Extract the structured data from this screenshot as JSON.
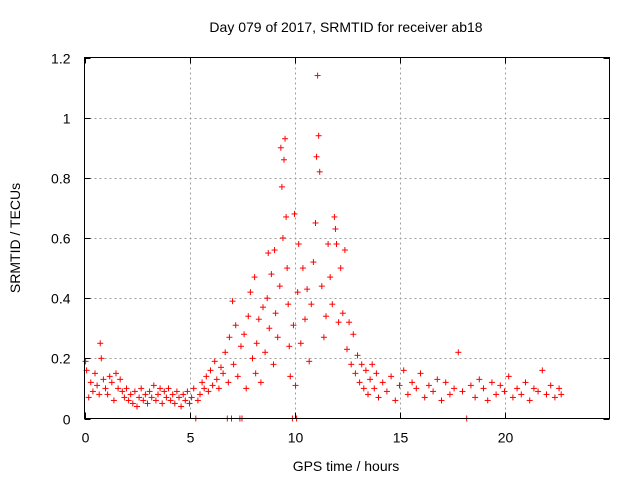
{
  "chart_data": {
    "type": "scatter",
    "title": "Day 079 of 2017, SRMTID for receiver ab18",
    "xlabel": "GPS time / hours",
    "ylabel": "SRMTID / TECUs",
    "xlim": [
      0,
      25
    ],
    "ylim": [
      0,
      1.2
    ],
    "xticks": [
      0,
      5,
      10,
      15,
      20
    ],
    "yticks": [
      0,
      0.2,
      0.4,
      0.6,
      0.8,
      1,
      1.2
    ],
    "ytick_labels": [
      "0",
      "0.2",
      "0.4",
      "0.6",
      "0.8",
      "1",
      "1.2"
    ],
    "grid": true,
    "marker": "+",
    "color": "#ff0000",
    "series": [
      {
        "name": "SRMTID",
        "points": [
          [
            0.05,
            0.19
          ],
          [
            0.1,
            0.16
          ],
          [
            0.2,
            0.07
          ],
          [
            0.3,
            0.12
          ],
          [
            0.4,
            0.09
          ],
          [
            0.5,
            0.15
          ],
          [
            0.6,
            0.11
          ],
          [
            0.7,
            0.08
          ],
          [
            0.75,
            0.25
          ],
          [
            0.8,
            0.2
          ],
          [
            0.9,
            0.13
          ],
          [
            1.0,
            0.1
          ],
          [
            1.1,
            0.08
          ],
          [
            1.2,
            0.14
          ],
          [
            1.3,
            0.12
          ],
          [
            1.4,
            0.06
          ],
          [
            1.5,
            0.15
          ],
          [
            1.6,
            0.1
          ],
          [
            1.7,
            0.13
          ],
          [
            1.8,
            0.09
          ],
          [
            1.9,
            0.07
          ],
          [
            2.0,
            0.1
          ],
          [
            2.1,
            0.06
          ],
          [
            2.2,
            0.08
          ],
          [
            2.3,
            0.05
          ],
          [
            2.4,
            0.09
          ],
          [
            2.5,
            0.04
          ],
          [
            2.6,
            0.07
          ],
          [
            2.7,
            0.1
          ],
          [
            2.8,
            0.06
          ],
          [
            2.9,
            0.08
          ],
          [
            3.0,
            0.05
          ],
          [
            3.1,
            0.09
          ],
          [
            3.2,
            0.07
          ],
          [
            3.3,
            0.11
          ],
          [
            3.4,
            0.06
          ],
          [
            3.5,
            0.08
          ],
          [
            3.6,
            0.1
          ],
          [
            3.7,
            0.05
          ],
          [
            3.8,
            0.09
          ],
          [
            3.9,
            0.07
          ],
          [
            4.0,
            0.1
          ],
          [
            4.1,
            0.06
          ],
          [
            4.2,
            0.08
          ],
          [
            4.3,
            0.05
          ],
          [
            4.4,
            0.09
          ],
          [
            4.5,
            0.07
          ],
          [
            4.6,
            0.04
          ],
          [
            4.7,
            0.08
          ],
          [
            4.8,
            0.06
          ],
          [
            4.9,
            0.09
          ],
          [
            5.0,
            0.05
          ],
          [
            5.1,
            0.07
          ],
          [
            5.2,
            0.1
          ],
          [
            5.3,
            0.0
          ],
          [
            5.4,
            0.06
          ],
          [
            5.5,
            0.08
          ],
          [
            5.6,
            0.12
          ],
          [
            5.7,
            0.1
          ],
          [
            5.8,
            0.14
          ],
          [
            5.9,
            0.09
          ],
          [
            6.0,
            0.16
          ],
          [
            6.1,
            0.11
          ],
          [
            6.2,
            0.19
          ],
          [
            6.3,
            0.13
          ],
          [
            6.4,
            0.1
          ],
          [
            6.5,
            0.17
          ],
          [
            6.6,
            0.15
          ],
          [
            6.7,
            0.22
          ],
          [
            6.8,
            0.0
          ],
          [
            6.85,
            0.12
          ],
          [
            6.9,
            0.27
          ],
          [
            7.0,
            0.0
          ],
          [
            7.05,
            0.39
          ],
          [
            7.1,
            0.18
          ],
          [
            7.2,
            0.31
          ],
          [
            7.3,
            0.14
          ],
          [
            7.4,
            0.0
          ],
          [
            7.45,
            0.24
          ],
          [
            7.5,
            0.0
          ],
          [
            7.6,
            0.28
          ],
          [
            7.7,
            0.1
          ],
          [
            7.8,
            0.34
          ],
          [
            7.9,
            0.42
          ],
          [
            8.0,
            0.2
          ],
          [
            8.1,
            0.47
          ],
          [
            8.15,
            0.15
          ],
          [
            8.2,
            0.25
          ],
          [
            8.3,
            0.33
          ],
          [
            8.4,
            0.12
          ],
          [
            8.5,
            0.37
          ],
          [
            8.6,
            0.22
          ],
          [
            8.7,
            0.4
          ],
          [
            8.75,
            0.55
          ],
          [
            8.8,
            0.3
          ],
          [
            8.9,
            0.48
          ],
          [
            9.0,
            0.18
          ],
          [
            9.05,
            0.56
          ],
          [
            9.1,
            0.35
          ],
          [
            9.2,
            0.27
          ],
          [
            9.3,
            0.44
          ],
          [
            9.35,
            0.9
          ],
          [
            9.4,
            0.77
          ],
          [
            9.45,
            0.6
          ],
          [
            9.5,
            0.86
          ],
          [
            9.55,
            0.93
          ],
          [
            9.6,
            0.67
          ],
          [
            9.65,
            0.5
          ],
          [
            9.7,
            0.38
          ],
          [
            9.75,
            0.24
          ],
          [
            9.8,
            0.14
          ],
          [
            9.9,
            0.0
          ],
          [
            9.95,
            0.31
          ],
          [
            10.0,
            0.68
          ],
          [
            10.05,
            0.11
          ],
          [
            10.1,
            0.0
          ],
          [
            10.15,
            0.42
          ],
          [
            10.2,
            0.58
          ],
          [
            10.3,
            0.25
          ],
          [
            10.4,
            0.5
          ],
          [
            10.5,
            0.33
          ],
          [
            10.6,
            0.43
          ],
          [
            10.7,
            0.19
          ],
          [
            10.8,
            0.38
          ],
          [
            10.9,
            0.52
          ],
          [
            11.0,
            0.65
          ],
          [
            11.05,
            0.87
          ],
          [
            11.1,
            1.14
          ],
          [
            11.15,
            0.94
          ],
          [
            11.2,
            0.82
          ],
          [
            11.3,
            0.44
          ],
          [
            11.4,
            0.27
          ],
          [
            11.5,
            0.34
          ],
          [
            11.6,
            0.58
          ],
          [
            11.7,
            0.47
          ],
          [
            11.8,
            0.38
          ],
          [
            11.9,
            0.67
          ],
          [
            11.95,
            0.63
          ],
          [
            12.0,
            0.58
          ],
          [
            12.1,
            0.32
          ],
          [
            12.2,
            0.5
          ],
          [
            12.3,
            0.35
          ],
          [
            12.4,
            0.56
          ],
          [
            12.5,
            0.23
          ],
          [
            12.6,
            0.32
          ],
          [
            12.7,
            0.18
          ],
          [
            12.8,
            0.28
          ],
          [
            12.9,
            0.15
          ],
          [
            13.0,
            0.21
          ],
          [
            13.1,
            0.12
          ],
          [
            13.2,
            0.18
          ],
          [
            13.3,
            0.1
          ],
          [
            13.4,
            0.16
          ],
          [
            13.5,
            0.08
          ],
          [
            13.6,
            0.13
          ],
          [
            13.7,
            0.18
          ],
          [
            13.8,
            0.1
          ],
          [
            13.9,
            0.15
          ],
          [
            14.0,
            0.07
          ],
          [
            14.2,
            0.12
          ],
          [
            14.4,
            0.09
          ],
          [
            14.6,
            0.14
          ],
          [
            14.8,
            0.06
          ],
          [
            15.0,
            0.11
          ],
          [
            15.2,
            0.16
          ],
          [
            15.4,
            0.08
          ],
          [
            15.6,
            0.12
          ],
          [
            15.8,
            0.1
          ],
          [
            16.0,
            0.15
          ],
          [
            16.2,
            0.07
          ],
          [
            16.4,
            0.11
          ],
          [
            16.6,
            0.09
          ],
          [
            16.8,
            0.13
          ],
          [
            17.0,
            0.06
          ],
          [
            17.2,
            0.12
          ],
          [
            17.4,
            0.08
          ],
          [
            17.6,
            0.1
          ],
          [
            17.8,
            0.22
          ],
          [
            18.0,
            0.09
          ],
          [
            18.2,
            0.0
          ],
          [
            18.4,
            0.11
          ],
          [
            18.6,
            0.07
          ],
          [
            18.8,
            0.13
          ],
          [
            19.0,
            0.1
          ],
          [
            19.2,
            0.06
          ],
          [
            19.4,
            0.12
          ],
          [
            19.6,
            0.08
          ],
          [
            19.8,
            0.11
          ],
          [
            20.0,
            0.09
          ],
          [
            20.2,
            0.14
          ],
          [
            20.4,
            0.07
          ],
          [
            20.6,
            0.1
          ],
          [
            20.8,
            0.08
          ],
          [
            21.0,
            0.12
          ],
          [
            21.2,
            0.06
          ],
          [
            21.4,
            0.1
          ],
          [
            21.6,
            0.09
          ],
          [
            21.8,
            0.16
          ],
          [
            22.0,
            0.08
          ],
          [
            22.2,
            0.11
          ],
          [
            22.4,
            0.07
          ],
          [
            22.6,
            0.1
          ],
          [
            22.7,
            0.08
          ]
        ]
      }
    ]
  }
}
